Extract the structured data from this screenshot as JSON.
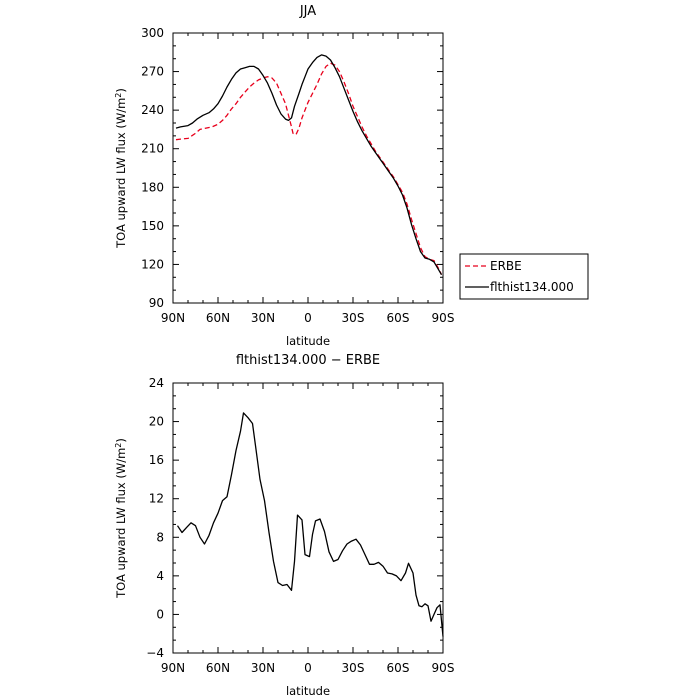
{
  "chart_data": [
    {
      "type": "line",
      "title": "JJA",
      "xlabel": "latitude",
      "ylabel": "TOA upward LW flux (W/m²)",
      "xlim": [
        90,
        -90
      ],
      "ylim": [
        90,
        300
      ],
      "x_tick_values": [
        90,
        60,
        30,
        0,
        -30,
        -60,
        -90
      ],
      "x_tick_labels": [
        "90N",
        "60N",
        "30N",
        "0",
        "30S",
        "60S",
        "90S"
      ],
      "y_tick_values": [
        90,
        120,
        150,
        180,
        210,
        240,
        270,
        300
      ],
      "y_tick_labels": [
        "90",
        "120",
        "150",
        "180",
        "210",
        "240",
        "270",
        "300"
      ],
      "legend_position": "right",
      "series": [
        {
          "name": "ERBE",
          "color": "#e8001c",
          "dash": "dashed",
          "points": [
            [
              88,
              217
            ],
            [
              85,
              217.5
            ],
            [
              80,
              218
            ],
            [
              75,
              222
            ],
            [
              72,
              225
            ],
            [
              68,
              226
            ],
            [
              64,
              227
            ],
            [
              60,
              229
            ],
            [
              57,
              232
            ],
            [
              54,
              236
            ],
            [
              51,
              241
            ],
            [
              48,
              245
            ],
            [
              45,
              250
            ],
            [
              42,
              254
            ],
            [
              39,
              258
            ],
            [
              36,
              261
            ],
            [
              33,
              263.5
            ],
            [
              30,
              265
            ],
            [
              27,
              266
            ],
            [
              24,
              265
            ],
            [
              21,
              261
            ],
            [
              18,
              253
            ],
            [
              15,
              245
            ],
            [
              13,
              236
            ],
            [
              11,
              227
            ],
            [
              10,
              222
            ],
            [
              8,
              221
            ],
            [
              6,
              226
            ],
            [
              4,
              234
            ],
            [
              2,
              240
            ],
            [
              0,
              246
            ],
            [
              -3,
              253
            ],
            [
              -6,
              260
            ],
            [
              -9,
              268
            ],
            [
              -12,
              274
            ],
            [
              -15,
              276.5
            ],
            [
              -18,
              275
            ],
            [
              -21,
              270
            ],
            [
              -24,
              262
            ],
            [
              -27,
              253
            ],
            [
              -30,
              243
            ],
            [
              -33,
              235
            ],
            [
              -36,
              227
            ],
            [
              -39,
              220
            ],
            [
              -42,
              214
            ],
            [
              -45,
              208
            ],
            [
              -48,
              203
            ],
            [
              -51,
              198
            ],
            [
              -54,
              193
            ],
            [
              -57,
              188
            ],
            [
              -60,
              182
            ],
            [
              -63,
              176
            ],
            [
              -66,
              167
            ],
            [
              -69,
              155
            ],
            [
              -72,
              144
            ],
            [
              -75,
              133
            ],
            [
              -78,
              126
            ],
            [
              -81,
              124
            ],
            [
              -84,
              123
            ],
            [
              -87,
              117
            ],
            [
              -89,
              112
            ]
          ]
        },
        {
          "name": "flthist134.000",
          "color": "#000000",
          "dash": "solid",
          "points": [
            [
              88,
              226
            ],
            [
              85,
              227
            ],
            [
              80,
              228
            ],
            [
              77,
              230
            ],
            [
              74,
              233
            ],
            [
              70,
              236
            ],
            [
              66,
              238
            ],
            [
              63,
              241
            ],
            [
              60,
              245
            ],
            [
              57,
              251
            ],
            [
              54,
              258
            ],
            [
              51,
              264
            ],
            [
              48,
              269
            ],
            [
              45,
              272
            ],
            [
              42,
              273
            ],
            [
              39,
              274
            ],
            [
              36,
              274
            ],
            [
              33,
              272
            ],
            [
              30,
              267
            ],
            [
              27,
              261
            ],
            [
              24,
              253
            ],
            [
              21,
              244
            ],
            [
              18,
              237
            ],
            [
              15,
              233
            ],
            [
              13,
              232
            ],
            [
              11,
              234
            ],
            [
              9,
              243
            ],
            [
              6,
              253
            ],
            [
              4,
              260
            ],
            [
              2,
              266
            ],
            [
              0,
              272
            ],
            [
              -3,
              277
            ],
            [
              -6,
              281
            ],
            [
              -9,
              283
            ],
            [
              -12,
              282
            ],
            [
              -15,
              279
            ],
            [
              -18,
              273
            ],
            [
              -21,
              266
            ],
            [
              -24,
              257
            ],
            [
              -27,
              248
            ],
            [
              -30,
              239
            ],
            [
              -33,
              231
            ],
            [
              -36,
              224
            ],
            [
              -39,
              218
            ],
            [
              -42,
              212
            ],
            [
              -45,
              207
            ],
            [
              -48,
              202
            ],
            [
              -51,
              197
            ],
            [
              -54,
              192
            ],
            [
              -57,
              187
            ],
            [
              -60,
              181
            ],
            [
              -63,
              174
            ],
            [
              -66,
              164
            ],
            [
              -69,
              151
            ],
            [
              -72,
              140
            ],
            [
              -75,
              130
            ],
            [
              -78,
              125
            ],
            [
              -81,
              124
            ],
            [
              -84,
              122
            ],
            [
              -87,
              116
            ],
            [
              -89,
              112
            ]
          ]
        }
      ]
    },
    {
      "type": "line",
      "title": "flthist134.000 − ERBE",
      "xlabel": "latitude",
      "ylabel": "TOA upward LW flux (W/m²)",
      "xlim": [
        90,
        -90
      ],
      "ylim": [
        -4,
        24
      ],
      "x_tick_values": [
        90,
        60,
        30,
        0,
        -30,
        -60,
        -90
      ],
      "x_tick_labels": [
        "90N",
        "60N",
        "30N",
        "0",
        "30S",
        "60S",
        "90S"
      ],
      "y_tick_values": [
        -4,
        0,
        4,
        8,
        12,
        16,
        20,
        24
      ],
      "y_tick_labels": [
        "−4",
        "0",
        "4",
        "8",
        "12",
        "16",
        "20",
        "24"
      ],
      "series": [
        {
          "name": "",
          "color": "#000000",
          "dash": "solid",
          "points": [
            [
              87,
              9.2
            ],
            [
              84,
              8.5
            ],
            [
              81,
              9.0
            ],
            [
              78,
              9.5
            ],
            [
              75,
              9.2
            ],
            [
              72,
              8.0
            ],
            [
              69,
              7.3
            ],
            [
              66,
              8.2
            ],
            [
              63,
              9.5
            ],
            [
              60,
              10.5
            ],
            [
              57,
              11.8
            ],
            [
              54,
              12.2
            ],
            [
              51,
              14.5
            ],
            [
              48,
              17.0
            ],
            [
              45,
              19.0
            ],
            [
              43,
              20.9
            ],
            [
              40,
              20.4
            ],
            [
              37,
              19.8
            ],
            [
              35,
              17.5
            ],
            [
              32,
              14.0
            ],
            [
              29,
              11.8
            ],
            [
              26,
              8.5
            ],
            [
              23,
              5.5
            ],
            [
              20,
              3.3
            ],
            [
              17,
              3.0
            ],
            [
              14,
              3.1
            ],
            [
              11,
              2.5
            ],
            [
              9,
              5.5
            ],
            [
              7,
              10.3
            ],
            [
              4,
              9.8
            ],
            [
              2,
              6.2
            ],
            [
              -1,
              6.0
            ],
            [
              -3,
              8.3
            ],
            [
              -5,
              9.7
            ],
            [
              -8,
              9.9
            ],
            [
              -11,
              8.6
            ],
            [
              -14,
              6.5
            ],
            [
              -17,
              5.5
            ],
            [
              -20,
              5.7
            ],
            [
              -23,
              6.6
            ],
            [
              -26,
              7.3
            ],
            [
              -29,
              7.6
            ],
            [
              -32,
              7.8
            ],
            [
              -35,
              7.2
            ],
            [
              -38,
              6.2
            ],
            [
              -41,
              5.2
            ],
            [
              -44,
              5.2
            ],
            [
              -47,
              5.4
            ],
            [
              -50,
              5.0
            ],
            [
              -53,
              4.3
            ],
            [
              -56,
              4.2
            ],
            [
              -59,
              4.0
            ],
            [
              -62,
              3.5
            ],
            [
              -65,
              4.3
            ],
            [
              -67,
              5.3
            ],
            [
              -70,
              4.3
            ],
            [
              -72,
              2.0
            ],
            [
              -74,
              0.9
            ],
            [
              -76,
              0.8
            ],
            [
              -78,
              1.1
            ],
            [
              -80,
              0.9
            ],
            [
              -82,
              -0.7
            ],
            [
              -84,
              0.0
            ],
            [
              -86,
              0.7
            ],
            [
              -88,
              1.0
            ],
            [
              -90,
              -2.3
            ]
          ]
        }
      ]
    }
  ]
}
